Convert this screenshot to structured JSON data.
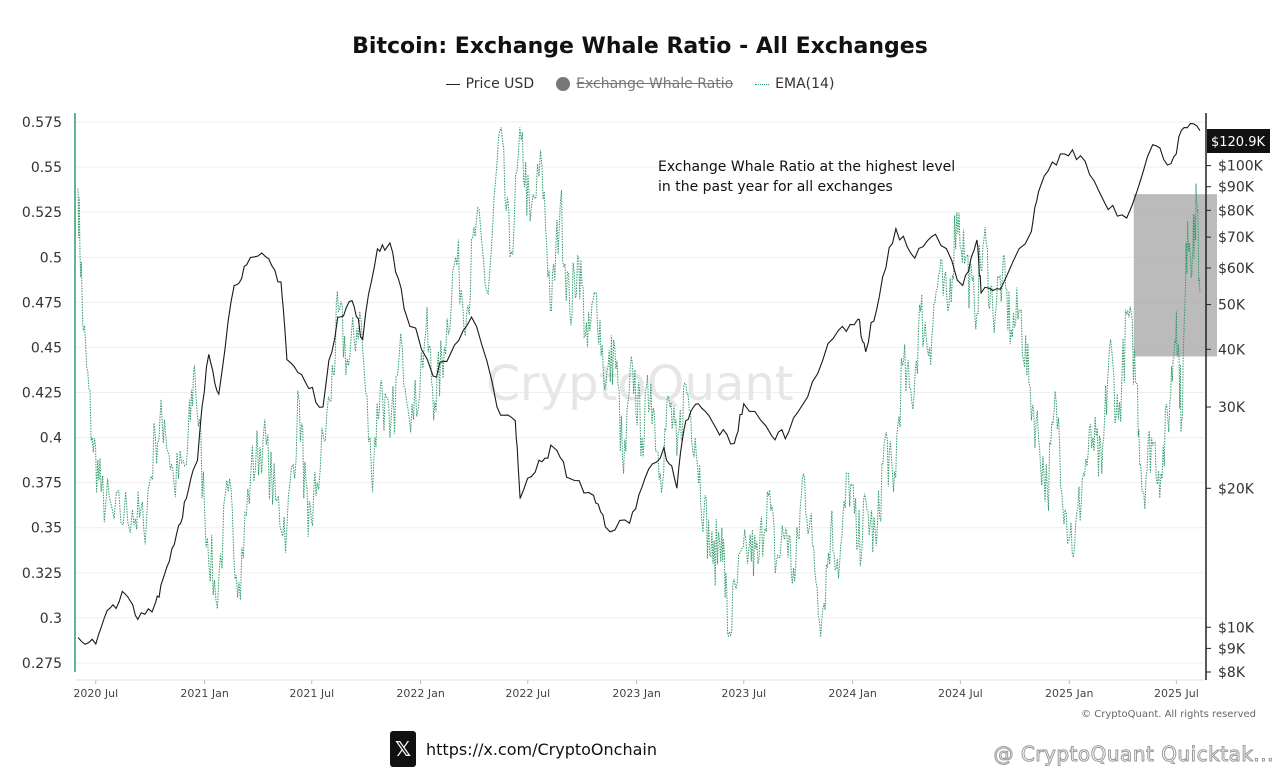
{
  "chart_data": {
    "type": "line",
    "title": "Bitcoin: Exchange Whale Ratio - All Exchanges",
    "legend": [
      {
        "name": "Price USD",
        "style": "solid-line",
        "color": "#222222"
      },
      {
        "name": "Exchange Whale Ratio",
        "style": "dot",
        "color": "#777777",
        "hidden": true
      },
      {
        "name": "EMA(14)",
        "style": "dotted-line",
        "color": "#2e9a6a"
      }
    ],
    "legend_position": "top-center",
    "x_ticks": [
      "2020 Jul",
      "2021 Jan",
      "2021 Jul",
      "2022 Jan",
      "2022 Jul",
      "2023 Jan",
      "2023 Jul",
      "2024 Jan",
      "2024 Jul",
      "2025 Jan",
      "2025 Jul"
    ],
    "x_range": [
      "2020-06-01",
      "2025-08-15"
    ],
    "y_left": {
      "ticks": [
        "0.575",
        "0.55",
        "0.525",
        "0.5",
        "0.475",
        "0.45",
        "0.425",
        "0.4",
        "0.375",
        "0.35",
        "0.325",
        "0.3",
        "0.275"
      ],
      "range": [
        0.27,
        0.58
      ]
    },
    "y_right": {
      "scale": "log",
      "ticks": [
        "$100K",
        "$90K",
        "$80K",
        "$70K",
        "$60K",
        "50K",
        "40K",
        "30K",
        "$20K",
        "$10K",
        "$9K",
        "$8K"
      ],
      "tick_values": [
        100000,
        90000,
        80000,
        70000,
        60000,
        50000,
        40000,
        30000,
        20000,
        10000,
        9000,
        8000
      ],
      "range": [
        8000,
        130000
      ]
    },
    "current_price_label": "$120.9K",
    "grid": "horizontal",
    "annotation": {
      "lines": [
        "Exchange Whale Ratio at the highest level",
        "in the past year for all exchanges"
      ]
    },
    "highlight_box": {
      "x_start": "2025-04-20",
      "x_end": "2025-08-15",
      "y_top": 0.535,
      "y_bottom": 0.445
    },
    "watermark": "CryptoQuant",
    "series": [
      {
        "name": "Price USD",
        "axis": "right",
        "points": [
          [
            "2020-06-01",
            9500
          ],
          [
            "2020-07-01",
            9200
          ],
          [
            "2020-07-25",
            11000
          ],
          [
            "2020-08-20",
            11800
          ],
          [
            "2020-09-10",
            10400
          ],
          [
            "2020-10-10",
            11300
          ],
          [
            "2020-10-25",
            13000
          ],
          [
            "2020-11-15",
            16000
          ],
          [
            "2020-12-01",
            19000
          ],
          [
            "2020-12-20",
            23000
          ],
          [
            "2021-01-08",
            39000
          ],
          [
            "2021-01-25",
            32000
          ],
          [
            "2021-02-20",
            55000
          ],
          [
            "2021-03-13",
            61000
          ],
          [
            "2021-04-14",
            63500
          ],
          [
            "2021-05-10",
            56000
          ],
          [
            "2021-05-20",
            38000
          ],
          [
            "2021-06-20",
            34000
          ],
          [
            "2021-07-20",
            30000
          ],
          [
            "2021-08-14",
            47000
          ],
          [
            "2021-09-07",
            51000
          ],
          [
            "2021-09-25",
            42000
          ],
          [
            "2021-10-20",
            66000
          ],
          [
            "2021-11-10",
            68000
          ],
          [
            "2021-12-04",
            49000
          ],
          [
            "2022-01-22",
            35000
          ],
          [
            "2022-02-20",
            39000
          ],
          [
            "2022-03-28",
            47000
          ],
          [
            "2022-05-10",
            30000
          ],
          [
            "2022-06-10",
            28000
          ],
          [
            "2022-06-18",
            19000
          ],
          [
            "2022-07-20",
            23000
          ],
          [
            "2022-08-14",
            24500
          ],
          [
            "2022-09-10",
            21000
          ],
          [
            "2022-10-20",
            19300
          ],
          [
            "2022-11-09",
            16500
          ],
          [
            "2022-12-20",
            16800
          ],
          [
            "2023-01-15",
            21000
          ],
          [
            "2023-02-16",
            24500
          ],
          [
            "2023-03-10",
            20000
          ],
          [
            "2023-03-25",
            28000
          ],
          [
            "2023-04-15",
            30500
          ],
          [
            "2023-05-15",
            27000
          ],
          [
            "2023-06-15",
            25000
          ],
          [
            "2023-07-01",
            30500
          ],
          [
            "2023-08-17",
            26000
          ],
          [
            "2023-09-15",
            26500
          ],
          [
            "2023-10-25",
            34000
          ],
          [
            "2023-12-08",
            44000
          ],
          [
            "2024-01-10",
            46500
          ],
          [
            "2024-01-23",
            39500
          ],
          [
            "2024-02-15",
            52000
          ],
          [
            "2024-03-14",
            73000
          ],
          [
            "2024-04-15",
            63000
          ],
          [
            "2024-05-20",
            71000
          ],
          [
            "2024-07-05",
            55000
          ],
          [
            "2024-07-29",
            69000
          ],
          [
            "2024-08-05",
            53000
          ],
          [
            "2024-09-07",
            54000
          ],
          [
            "2024-10-29",
            72000
          ],
          [
            "2024-11-13",
            90000
          ],
          [
            "2024-12-17",
            106000
          ],
          [
            "2025-01-20",
            105000
          ],
          [
            "2025-02-28",
            84000
          ],
          [
            "2025-04-08",
            77000
          ],
          [
            "2025-05-22",
            111000
          ],
          [
            "2025-06-22",
            101000
          ],
          [
            "2025-07-14",
            120900
          ],
          [
            "2025-08-10",
            119000
          ]
        ]
      },
      {
        "name": "EMA(14)",
        "axis": "left",
        "points": [
          [
            "2020-06-01",
            0.538
          ],
          [
            "2020-06-10",
            0.46
          ],
          [
            "2020-06-25",
            0.4
          ],
          [
            "2020-07-10",
            0.37
          ],
          [
            "2020-08-01",
            0.355
          ],
          [
            "2020-09-01",
            0.36
          ],
          [
            "2020-09-20",
            0.35
          ],
          [
            "2020-10-10",
            0.4
          ],
          [
            "2020-10-25",
            0.41
          ],
          [
            "2020-11-10",
            0.375
          ],
          [
            "2020-12-01",
            0.385
          ],
          [
            "2020-12-15",
            0.44
          ],
          [
            "2021-01-01",
            0.36
          ],
          [
            "2021-01-20",
            0.31
          ],
          [
            "2021-02-10",
            0.37
          ],
          [
            "2021-02-28",
            0.32
          ],
          [
            "2021-03-20",
            0.38
          ],
          [
            "2021-04-10",
            0.4
          ],
          [
            "2021-05-01",
            0.365
          ],
          [
            "2021-05-20",
            0.35
          ],
          [
            "2021-06-10",
            0.42
          ],
          [
            "2021-06-25",
            0.345
          ],
          [
            "2021-07-10",
            0.375
          ],
          [
            "2021-08-01",
            0.42
          ],
          [
            "2021-08-15",
            0.47
          ],
          [
            "2021-09-01",
            0.44
          ],
          [
            "2021-09-20",
            0.47
          ],
          [
            "2021-10-10",
            0.38
          ],
          [
            "2021-10-25",
            0.43
          ],
          [
            "2021-11-10",
            0.4
          ],
          [
            "2021-12-01",
            0.45
          ],
          [
            "2021-12-20",
            0.41
          ],
          [
            "2022-01-10",
            0.46
          ],
          [
            "2022-01-25",
            0.42
          ],
          [
            "2022-02-10",
            0.45
          ],
          [
            "2022-03-01",
            0.5
          ],
          [
            "2022-03-20",
            0.47
          ],
          [
            "2022-04-05",
            0.52
          ],
          [
            "2022-04-25",
            0.48
          ],
          [
            "2022-05-15",
            0.57
          ],
          [
            "2022-06-01",
            0.5
          ],
          [
            "2022-06-20",
            0.565
          ],
          [
            "2022-07-05",
            0.52
          ],
          [
            "2022-07-25",
            0.55
          ],
          [
            "2022-08-10",
            0.47
          ],
          [
            "2022-08-25",
            0.53
          ],
          [
            "2022-09-10",
            0.47
          ],
          [
            "2022-09-25",
            0.5
          ],
          [
            "2022-10-10",
            0.45
          ],
          [
            "2022-10-25",
            0.48
          ],
          [
            "2022-11-10",
            0.43
          ],
          [
            "2022-11-25",
            0.45
          ],
          [
            "2022-12-10",
            0.38
          ],
          [
            "2022-12-25",
            0.44
          ],
          [
            "2023-01-10",
            0.4
          ],
          [
            "2023-01-25",
            0.43
          ],
          [
            "2023-02-10",
            0.38
          ],
          [
            "2023-02-25",
            0.42
          ],
          [
            "2023-03-10",
            0.39
          ],
          [
            "2023-03-25",
            0.43
          ],
          [
            "2023-04-10",
            0.4
          ],
          [
            "2023-04-25",
            0.36
          ],
          [
            "2023-05-10",
            0.33
          ],
          [
            "2023-05-25",
            0.35
          ],
          [
            "2023-06-05",
            0.29
          ],
          [
            "2023-06-20",
            0.32
          ],
          [
            "2023-07-10",
            0.34
          ],
          [
            "2023-07-25",
            0.33
          ],
          [
            "2023-08-10",
            0.37
          ],
          [
            "2023-08-25",
            0.33
          ],
          [
            "2023-09-10",
            0.35
          ],
          [
            "2023-09-25",
            0.32
          ],
          [
            "2023-10-10",
            0.38
          ],
          [
            "2023-10-25",
            0.34
          ],
          [
            "2023-11-10",
            0.3
          ],
          [
            "2023-11-25",
            0.35
          ],
          [
            "2023-12-10",
            0.33
          ],
          [
            "2023-12-25",
            0.38
          ],
          [
            "2024-01-10",
            0.34
          ],
          [
            "2024-01-25",
            0.36
          ],
          [
            "2024-02-10",
            0.34
          ],
          [
            "2024-02-25",
            0.4
          ],
          [
            "2024-03-10",
            0.37
          ],
          [
            "2024-03-25",
            0.44
          ],
          [
            "2024-04-10",
            0.42
          ],
          [
            "2024-04-25",
            0.47
          ],
          [
            "2024-05-10",
            0.45
          ],
          [
            "2024-05-25",
            0.49
          ],
          [
            "2024-06-10",
            0.47
          ],
          [
            "2024-06-25",
            0.525
          ],
          [
            "2024-07-10",
            0.5
          ],
          [
            "2024-07-25",
            0.47
          ],
          [
            "2024-08-10",
            0.51
          ],
          [
            "2024-08-25",
            0.47
          ],
          [
            "2024-09-10",
            0.49
          ],
          [
            "2024-09-25",
            0.46
          ],
          [
            "2024-10-10",
            0.47
          ],
          [
            "2024-10-25",
            0.43
          ],
          [
            "2024-11-10",
            0.4
          ],
          [
            "2024-11-25",
            0.37
          ],
          [
            "2024-12-10",
            0.42
          ],
          [
            "2024-12-25",
            0.36
          ],
          [
            "2025-01-10",
            0.34
          ],
          [
            "2025-01-25",
            0.38
          ],
          [
            "2025-02-10",
            0.4
          ],
          [
            "2025-02-25",
            0.38
          ],
          [
            "2025-03-10",
            0.45
          ],
          [
            "2025-03-25",
            0.41
          ],
          [
            "2025-04-10",
            0.47
          ],
          [
            "2025-04-25",
            0.43
          ],
          [
            "2025-05-05",
            0.37
          ],
          [
            "2025-05-20",
            0.4
          ],
          [
            "2025-06-05",
            0.38
          ],
          [
            "2025-06-20",
            0.42
          ],
          [
            "2025-07-01",
            0.47
          ],
          [
            "2025-07-10",
            0.41
          ],
          [
            "2025-07-20",
            0.52
          ],
          [
            "2025-07-28",
            0.5
          ],
          [
            "2025-08-04",
            0.53
          ],
          [
            "2025-08-10",
            0.48
          ]
        ]
      }
    ]
  },
  "copyright": "© CryptoQuant. All rights reserved",
  "footer_link": "https://x.com/CryptoOnchain",
  "footer_logo": "𝕏",
  "watermark_credit": "@ CryptoQuant Quicktak..."
}
